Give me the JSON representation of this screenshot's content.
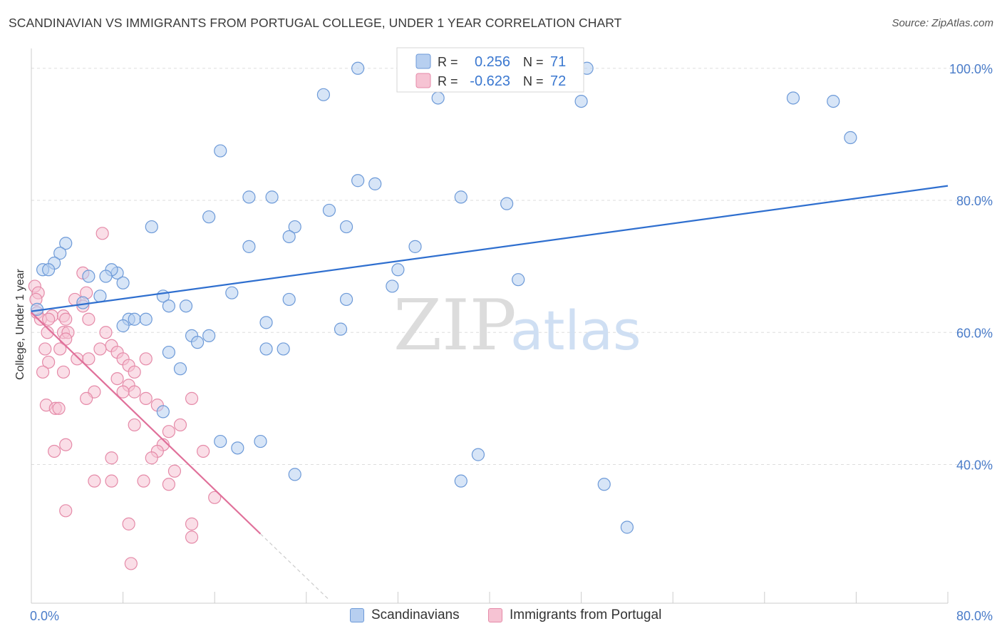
{
  "header": {
    "title": "SCANDINAVIAN VS IMMIGRANTS FROM PORTUGAL COLLEGE, UNDER 1 YEAR CORRELATION CHART",
    "source": "Source: ZipAtlas.com"
  },
  "watermark": {
    "zip": "ZIP",
    "atlas": "atlas"
  },
  "colors": {
    "blue_fill": "#b7cff0",
    "blue_stroke": "#6d9ad8",
    "blue_line": "#2f6fcf",
    "pink_fill": "#f6c3d3",
    "pink_stroke": "#e58aa8",
    "pink_line": "#e0709a",
    "axis_text": "#4a7cc9",
    "grid": "#dddddd"
  },
  "legend_top": {
    "rows": [
      {
        "r_label": "R =",
        "r_value": "0.256",
        "n_label": "N =",
        "n_value": "71"
      },
      {
        "r_label": "R =",
        "r_value": "-0.623",
        "n_label": "N =",
        "n_value": "72"
      }
    ]
  },
  "legend_bottom": {
    "items": [
      "Scandinavians",
      "Immigrants from Portugal"
    ]
  },
  "chart_data": {
    "type": "scatter",
    "title": "SCANDINAVIAN VS IMMIGRANTS FROM PORTUGAL COLLEGE, UNDER 1 YEAR CORRELATION CHART",
    "xlabel": "",
    "ylabel": "College, Under 1 year",
    "xlim": [
      0,
      80
    ],
    "ylim": [
      19,
      103
    ],
    "x_tick_labels": [
      "0.0%",
      "80.0%"
    ],
    "y_ticks": [
      40,
      60,
      80,
      100
    ],
    "y_tick_labels": [
      "40.0%",
      "60.0%",
      "80.0%",
      "100.0%"
    ],
    "grid": true,
    "legend_placement": "top-center",
    "series": [
      {
        "name": "Scandinavians",
        "r": 0.256,
        "n": 71,
        "trend": {
          "x": [
            0,
            80
          ],
          "y": [
            63.2,
            82.2
          ]
        },
        "points": [
          [
            28.5,
            100
          ],
          [
            48.5,
            100
          ],
          [
            25.5,
            96
          ],
          [
            35.5,
            95.5
          ],
          [
            48,
            95
          ],
          [
            66.5,
            95.5
          ],
          [
            70,
            95
          ],
          [
            71.5,
            89.5
          ],
          [
            16.5,
            87.5
          ],
          [
            28.5,
            83
          ],
          [
            30,
            82.5
          ],
          [
            19,
            80.5
          ],
          [
            21,
            80.5
          ],
          [
            26,
            78.5
          ],
          [
            37.5,
            80.5
          ],
          [
            41.5,
            79.5
          ],
          [
            15.5,
            77.5
          ],
          [
            10.5,
            76
          ],
          [
            23,
            76
          ],
          [
            27.5,
            76
          ],
          [
            22.5,
            74.5
          ],
          [
            3,
            73.5
          ],
          [
            19,
            73
          ],
          [
            33.5,
            73
          ],
          [
            2.5,
            72
          ],
          [
            2,
            70.5
          ],
          [
            1,
            69.5
          ],
          [
            1.5,
            69.5
          ],
          [
            7.5,
            69
          ],
          [
            7,
            69.5
          ],
          [
            5,
            68.5
          ],
          [
            32,
            69.5
          ],
          [
            6.5,
            68.5
          ],
          [
            8,
            67.5
          ],
          [
            42.5,
            68
          ],
          [
            31.5,
            67
          ],
          [
            17.5,
            66
          ],
          [
            11.5,
            65.5
          ],
          [
            6,
            65.5
          ],
          [
            22.5,
            65
          ],
          [
            27.5,
            65
          ],
          [
            4.5,
            64.5
          ],
          [
            12,
            64
          ],
          [
            13.5,
            64
          ],
          [
            0.5,
            63.5
          ],
          [
            8.5,
            62
          ],
          [
            9,
            62
          ],
          [
            10,
            62
          ],
          [
            20.5,
            61.5
          ],
          [
            8,
            61
          ],
          [
            14,
            59.5
          ],
          [
            15.5,
            59.5
          ],
          [
            27,
            60.5
          ],
          [
            14.5,
            58.5
          ],
          [
            12,
            57
          ],
          [
            20.5,
            57.5
          ],
          [
            22,
            57.5
          ],
          [
            13,
            54.5
          ],
          [
            11.5,
            48
          ],
          [
            16.5,
            43.5
          ],
          [
            18,
            42.5
          ],
          [
            20,
            43.5
          ],
          [
            39,
            41.5
          ],
          [
            23,
            38.5
          ],
          [
            37.5,
            37.5
          ],
          [
            50,
            37
          ],
          [
            52,
            30.5
          ]
        ]
      },
      {
        "name": "Immigrants from Portugal",
        "r": -0.623,
        "n": 72,
        "trend": {
          "x": [
            0,
            20
          ],
          "y": [
            63,
            29.5
          ]
        },
        "trend_dash": {
          "x": [
            20,
            26
          ],
          "y": [
            29.5,
            19.5
          ]
        },
        "points": [
          [
            6.2,
            75
          ],
          [
            4.5,
            69
          ],
          [
            0.3,
            67
          ],
          [
            0.6,
            66
          ],
          [
            4.8,
            66
          ],
          [
            0.4,
            65
          ],
          [
            3.8,
            65
          ],
          [
            4.5,
            64
          ],
          [
            0.5,
            63
          ],
          [
            1.8,
            62.5
          ],
          [
            2.8,
            62.5
          ],
          [
            0.8,
            62
          ],
          [
            1.5,
            62
          ],
          [
            3,
            62
          ],
          [
            5,
            62
          ],
          [
            6.5,
            60
          ],
          [
            1.4,
            60
          ],
          [
            2.8,
            60
          ],
          [
            3.2,
            60
          ],
          [
            3,
            59
          ],
          [
            7,
            58
          ],
          [
            6,
            57.5
          ],
          [
            1.2,
            57.5
          ],
          [
            2.5,
            57.5
          ],
          [
            7.5,
            57
          ],
          [
            4,
            56
          ],
          [
            5,
            56
          ],
          [
            8,
            56
          ],
          [
            10,
            56
          ],
          [
            8.5,
            55
          ],
          [
            1.5,
            55.5
          ],
          [
            9,
            54
          ],
          [
            1,
            54
          ],
          [
            2.8,
            54
          ],
          [
            7.5,
            53
          ],
          [
            8.5,
            52
          ],
          [
            5.5,
            51
          ],
          [
            9,
            51
          ],
          [
            8,
            51
          ],
          [
            10,
            50
          ],
          [
            4.8,
            50
          ],
          [
            14,
            50
          ],
          [
            11,
            49
          ],
          [
            1.3,
            49
          ],
          [
            2.1,
            48.5
          ],
          [
            2.4,
            48.5
          ],
          [
            9,
            46
          ],
          [
            13,
            46
          ],
          [
            12,
            45
          ],
          [
            11.5,
            43
          ],
          [
            3,
            43
          ],
          [
            15,
            42
          ],
          [
            11,
            42
          ],
          [
            2,
            42
          ],
          [
            7,
            41
          ],
          [
            10.5,
            41
          ],
          [
            12.5,
            39
          ],
          [
            5.5,
            37.5
          ],
          [
            7,
            37.5
          ],
          [
            9.8,
            37.5
          ],
          [
            12,
            37
          ],
          [
            16,
            35
          ],
          [
            3,
            33
          ],
          [
            8.5,
            31
          ],
          [
            14,
            31
          ],
          [
            14,
            29
          ],
          [
            8.7,
            25
          ]
        ]
      }
    ]
  }
}
